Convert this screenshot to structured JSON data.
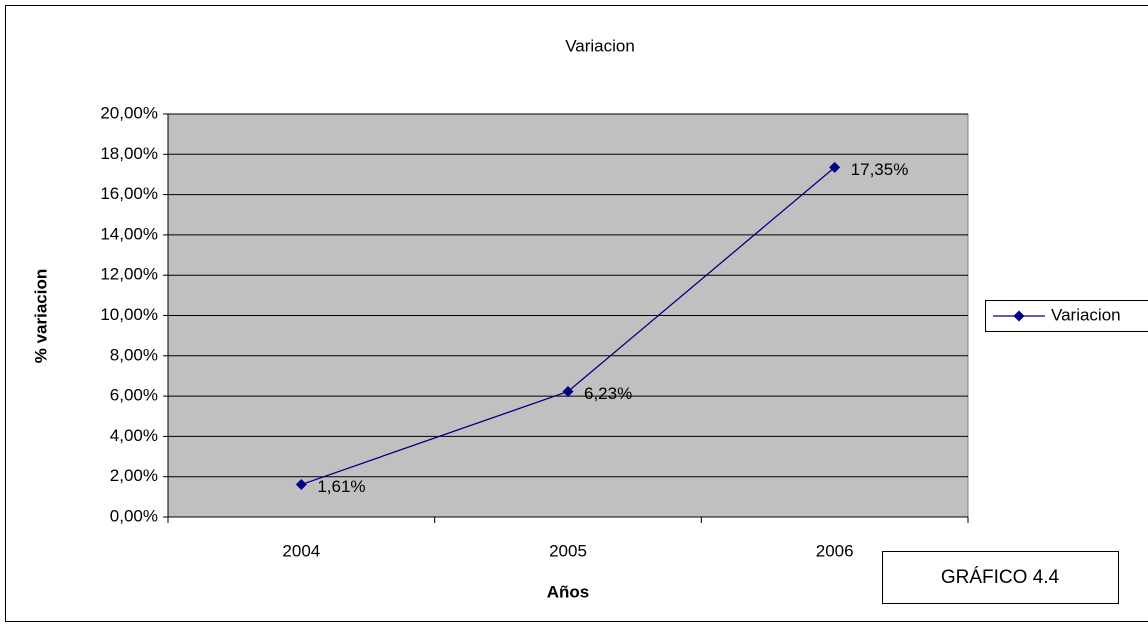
{
  "chart_data": {
    "type": "line",
    "title": "Variacion",
    "x_label": "Años",
    "y_label": "% variacion",
    "categories": [
      "2004",
      "2005",
      "2006"
    ],
    "series": [
      {
        "name": "Variacion",
        "color": "#000080",
        "values": [
          1.61,
          6.23,
          17.35
        ],
        "value_labels": [
          "1,61%",
          "6,23%",
          "17,35%"
        ]
      }
    ],
    "ylim": [
      0,
      20
    ],
    "yticks": [
      {
        "value": 0,
        "label": "0,00%"
      },
      {
        "value": 2,
        "label": "2,00%"
      },
      {
        "value": 4,
        "label": "4,00%"
      },
      {
        "value": 6,
        "label": "6,00%"
      },
      {
        "value": 8,
        "label": "8,00%"
      },
      {
        "value": 10,
        "label": "10,00%"
      },
      {
        "value": 12,
        "label": "12,00%"
      },
      {
        "value": 14,
        "label": "14,00%"
      },
      {
        "value": 16,
        "label": "16,00%"
      },
      {
        "value": 18,
        "label": "18,00%"
      },
      {
        "value": 20,
        "label": "20,00%"
      }
    ],
    "grid": true,
    "legend": "right",
    "plot_background": "#c0c0c0",
    "annotation": "GRÁFICO 4.4"
  }
}
